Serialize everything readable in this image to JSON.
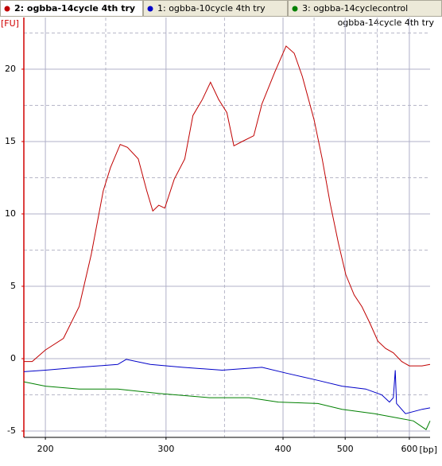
{
  "chart_data": {
    "type": "line",
    "title": "ogbba-14cycle 4th try",
    "ylabel": "[FU]",
    "xlabel": "[bp]",
    "xlim": [
      182,
      631
    ],
    "xticks": [
      200,
      300,
      400,
      500,
      600
    ],
    "xminorticks": [
      250,
      350,
      450,
      550
    ],
    "ylim": [
      -5.44,
      23.57
    ],
    "yticks": [
      -5,
      0,
      5,
      10,
      15,
      20
    ],
    "yminorticks": [
      -2.5,
      2.5,
      7.5,
      12.5,
      17.5,
      22.5
    ],
    "grid": true,
    "axis_color": "#d00000",
    "series": [
      {
        "name": "2: ogbba-14cycle 4th try",
        "color": "#c00000",
        "x": [
          182,
          189,
          200,
          215,
          228,
          238,
          248,
          254,
          262,
          268,
          277,
          284,
          289,
          294,
          299,
          307,
          316,
          323,
          331,
          338,
          345,
          352,
          358,
          365,
          375,
          382,
          393,
          405,
          418,
          431,
          450,
          463,
          476,
          489,
          501,
          514,
          526,
          538,
          551,
          563,
          575,
          588,
          600,
          619,
          631
        ],
        "values": [
          -0.2,
          -0.2,
          0.6,
          1.4,
          3.6,
          7.2,
          11.6,
          13.2,
          14.8,
          14.6,
          13.8,
          11.6,
          10.2,
          10.6,
          10.4,
          12.4,
          13.8,
          16.8,
          17.9,
          19.1,
          17.9,
          17.0,
          14.7,
          15.0,
          15.4,
          17.6,
          19.8,
          21.6,
          21.1,
          19.5,
          16.5,
          13.8,
          10.7,
          8.0,
          5.8,
          4.4,
          3.6,
          2.5,
          1.2,
          0.7,
          0.4,
          -0.2,
          -0.5,
          -0.5,
          -0.4
        ]
      },
      {
        "name": "1: ogbba-10cycle 4th try",
        "color": "#0000c8",
        "x": [
          182,
          200,
          228,
          260,
          267,
          287,
          314,
          348,
          382,
          405,
          456,
          495,
          532,
          557,
          569,
          575,
          578,
          580,
          594,
          619,
          631
        ],
        "values": [
          -0.9,
          -0.8,
          -0.6,
          -0.4,
          -0.05,
          -0.4,
          -0.6,
          -0.8,
          -0.6,
          -1.0,
          -1.5,
          -1.9,
          -2.1,
          -2.5,
          -3.0,
          -2.7,
          -0.8,
          -3.1,
          -3.8,
          -3.5,
          -3.4
        ]
      },
      {
        "name": "3: ogbba-14cyclecontrol",
        "color": "#008000",
        "x": [
          182,
          200,
          228,
          260,
          294,
          337,
          371,
          396,
          456,
          495,
          546,
          582,
          606,
          625,
          631
        ],
        "values": [
          -1.6,
          -1.9,
          -2.1,
          -2.1,
          -2.4,
          -2.7,
          -2.7,
          -3.0,
          -3.1,
          -3.5,
          -3.8,
          -4.1,
          -4.3,
          -4.9,
          -4.3
        ]
      }
    ]
  }
}
